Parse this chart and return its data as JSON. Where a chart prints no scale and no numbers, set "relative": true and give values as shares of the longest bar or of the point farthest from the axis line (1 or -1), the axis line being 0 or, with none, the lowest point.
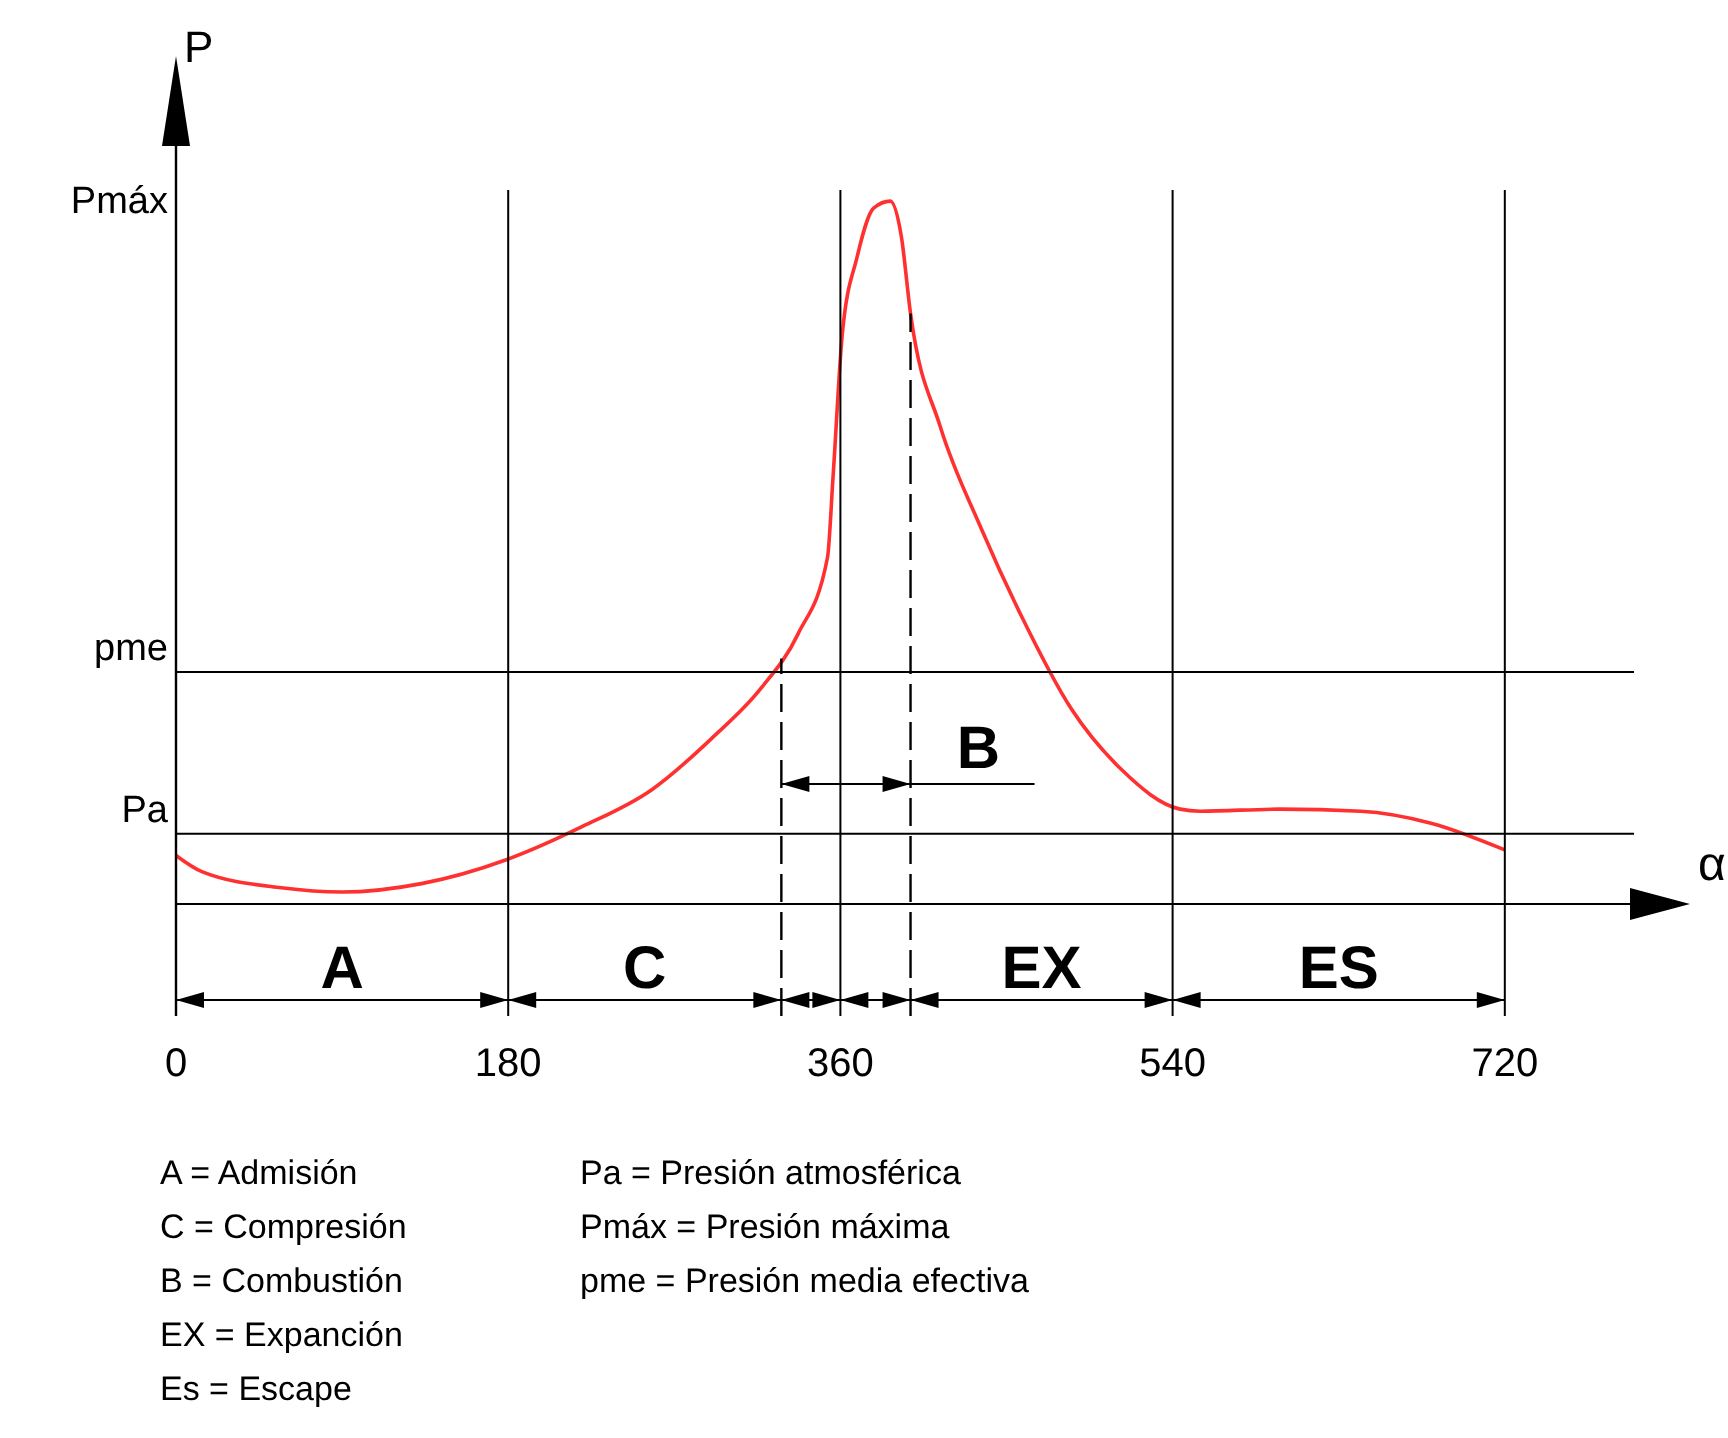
{
  "chart_data": {
    "type": "line",
    "relative": true,
    "xlabel": "α",
    "ylabel": "P",
    "xlim": [
      0,
      790
    ],
    "xticks": [
      0,
      180,
      360,
      540,
      720
    ],
    "grid": "x",
    "series": [
      {
        "color": "#ff3030",
        "x": [
          0,
          14,
          57,
          90,
          133,
          179,
          220,
          258,
          290,
          317,
          337,
          353,
          356,
          361,
          369,
          378,
          387,
          393,
          398,
          414,
          436,
          458,
          485,
          512,
          544,
          555,
          598,
          642,
          680,
          720
        ],
        "values": [
          0.069,
          0.046,
          0.023,
          0.017,
          0.029,
          0.063,
          0.11,
          0.163,
          0.235,
          0.307,
          0.384,
          0.493,
          0.607,
          0.81,
          0.92,
          0.99,
          1.0,
          0.95,
          0.84,
          0.68,
          0.536,
          0.41,
          0.278,
          0.192,
          0.135,
          0.132,
          0.135,
          0.132,
          0.115,
          0.077
        ]
      }
    ],
    "ref_lines": [
      {
        "axis": "y",
        "value": 0.33,
        "label": "pme"
      },
      {
        "axis": "y",
        "value": 0.1,
        "label": "Pa"
      },
      {
        "axis": "x",
        "value": 328,
        "label": null,
        "line_style": "dashed"
      },
      {
        "axis": "x",
        "value": 398,
        "label": null,
        "line_style": "dashed"
      }
    ],
    "annotations": [
      "Pmáx",
      "B",
      "A",
      "C",
      "EX",
      "ES",
      "A = Admisión",
      "C = Compresión",
      "B = Combustión",
      "EX = Expanción",
      "Es = Escape",
      "Pa = Presión atmosférica",
      "Pmáx = Presión máxima",
      "pme = Presión media efectiva"
    ]
  }
}
